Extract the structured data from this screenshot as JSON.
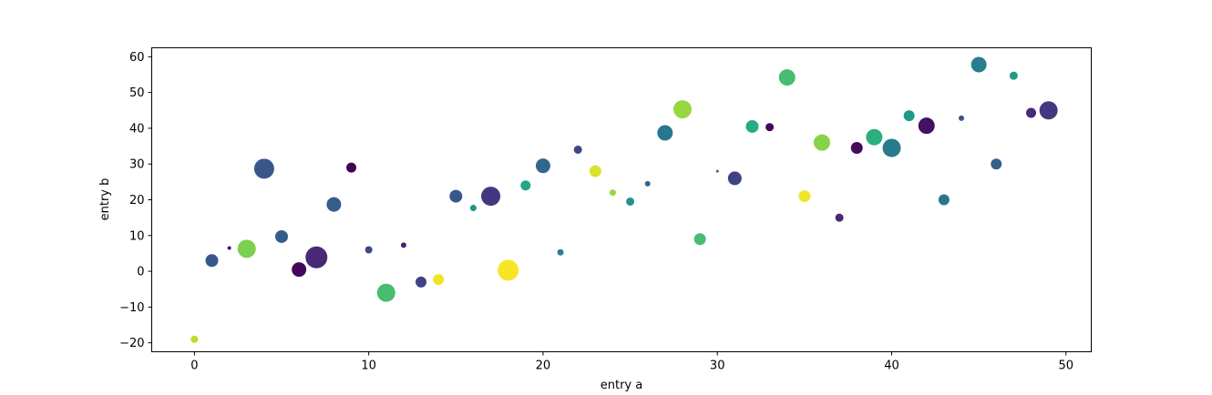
{
  "chart_data": {
    "type": "scatter",
    "title": "",
    "xlabel": "entry a",
    "ylabel": "entry b",
    "xlim": [
      -2.45,
      51.45
    ],
    "ylim": [
      -22.5,
      62.5
    ],
    "x_ticks": [
      0,
      10,
      20,
      30,
      40,
      50
    ],
    "y_ticks": [
      -20,
      -10,
      0,
      10,
      20,
      30,
      40,
      50,
      60
    ],
    "grid": false,
    "legend": "none",
    "colormap": "viridis",
    "points": [
      {
        "x": 0,
        "y": -19,
        "size": 4,
        "color": 0.9
      },
      {
        "x": 1,
        "y": 3,
        "size": 7,
        "color": 0.28
      },
      {
        "x": 2,
        "y": 6.5,
        "size": 2,
        "color": 0.05
      },
      {
        "x": 3,
        "y": 6.3,
        "size": 10,
        "color": 0.8
      },
      {
        "x": 4,
        "y": 28.7,
        "size": 11,
        "color": 0.27
      },
      {
        "x": 5,
        "y": 9.7,
        "size": 7,
        "color": 0.3
      },
      {
        "x": 6,
        "y": 0.5,
        "size": 8,
        "color": 0.02
      },
      {
        "x": 7,
        "y": 3.9,
        "size": 12,
        "color": 0.12
      },
      {
        "x": 8,
        "y": 18.7,
        "size": 8,
        "color": 0.3
      },
      {
        "x": 9,
        "y": 29,
        "size": 5.5,
        "color": 0.0
      },
      {
        "x": 10,
        "y": 6,
        "size": 4,
        "color": 0.22
      },
      {
        "x": 11,
        "y": -6,
        "size": 10,
        "color": 0.7
      },
      {
        "x": 12,
        "y": 7.3,
        "size": 3,
        "color": 0.1
      },
      {
        "x": 13,
        "y": -3,
        "size": 6,
        "color": 0.2
      },
      {
        "x": 14,
        "y": -2.3,
        "size": 6,
        "color": 0.98
      },
      {
        "x": 15,
        "y": 21,
        "size": 7,
        "color": 0.28
      },
      {
        "x": 16,
        "y": 17.7,
        "size": 3.5,
        "color": 0.52
      },
      {
        "x": 17,
        "y": 21,
        "size": 10.5,
        "color": 0.17
      },
      {
        "x": 18,
        "y": 0.3,
        "size": 11.5,
        "color": 0.99
      },
      {
        "x": 19,
        "y": 24,
        "size": 5.5,
        "color": 0.6
      },
      {
        "x": 20,
        "y": 29.5,
        "size": 8,
        "color": 0.34
      },
      {
        "x": 21,
        "y": 5.3,
        "size": 3.5,
        "color": 0.44
      },
      {
        "x": 22,
        "y": 34,
        "size": 4.5,
        "color": 0.22
      },
      {
        "x": 23,
        "y": 28,
        "size": 6.5,
        "color": 0.95
      },
      {
        "x": 24,
        "y": 22,
        "size": 3.5,
        "color": 0.85
      },
      {
        "x": 25,
        "y": 19.5,
        "size": 4.5,
        "color": 0.52
      },
      {
        "x": 26,
        "y": 24.5,
        "size": 3,
        "color": 0.33
      },
      {
        "x": 27,
        "y": 38.7,
        "size": 8.5,
        "color": 0.4
      },
      {
        "x": 28,
        "y": 45.3,
        "size": 10,
        "color": 0.85
      },
      {
        "x": 29,
        "y": 9,
        "size": 6.5,
        "color": 0.7
      },
      {
        "x": 30,
        "y": 28,
        "size": 1.5,
        "color": 0.36
      },
      {
        "x": 31,
        "y": 26,
        "size": 7.5,
        "color": 0.2
      },
      {
        "x": 32,
        "y": 40.5,
        "size": 7,
        "color": 0.62
      },
      {
        "x": 33,
        "y": 40.3,
        "size": 4.5,
        "color": 0.02
      },
      {
        "x": 34,
        "y": 54.2,
        "size": 9,
        "color": 0.7
      },
      {
        "x": 35,
        "y": 21,
        "size": 6.5,
        "color": 0.98
      },
      {
        "x": 36,
        "y": 36,
        "size": 9,
        "color": 0.82
      },
      {
        "x": 37,
        "y": 15,
        "size": 4.5,
        "color": 0.12
      },
      {
        "x": 38,
        "y": 34.5,
        "size": 6.5,
        "color": 0.03
      },
      {
        "x": 39,
        "y": 37.5,
        "size": 9,
        "color": 0.64
      },
      {
        "x": 40,
        "y": 34.5,
        "size": 10,
        "color": 0.42
      },
      {
        "x": 41,
        "y": 43.5,
        "size": 6,
        "color": 0.54
      },
      {
        "x": 42,
        "y": 40.7,
        "size": 9,
        "color": 0.05
      },
      {
        "x": 43,
        "y": 20,
        "size": 6,
        "color": 0.4
      },
      {
        "x": 44,
        "y": 42.8,
        "size": 3,
        "color": 0.26
      },
      {
        "x": 45,
        "y": 57.8,
        "size": 8.5,
        "color": 0.43
      },
      {
        "x": 46,
        "y": 30,
        "size": 6,
        "color": 0.32
      },
      {
        "x": 47,
        "y": 54.7,
        "size": 4.5,
        "color": 0.55
      },
      {
        "x": 48,
        "y": 44.3,
        "size": 5.5,
        "color": 0.12
      },
      {
        "x": 49,
        "y": 45,
        "size": 10,
        "color": 0.17
      }
    ]
  }
}
